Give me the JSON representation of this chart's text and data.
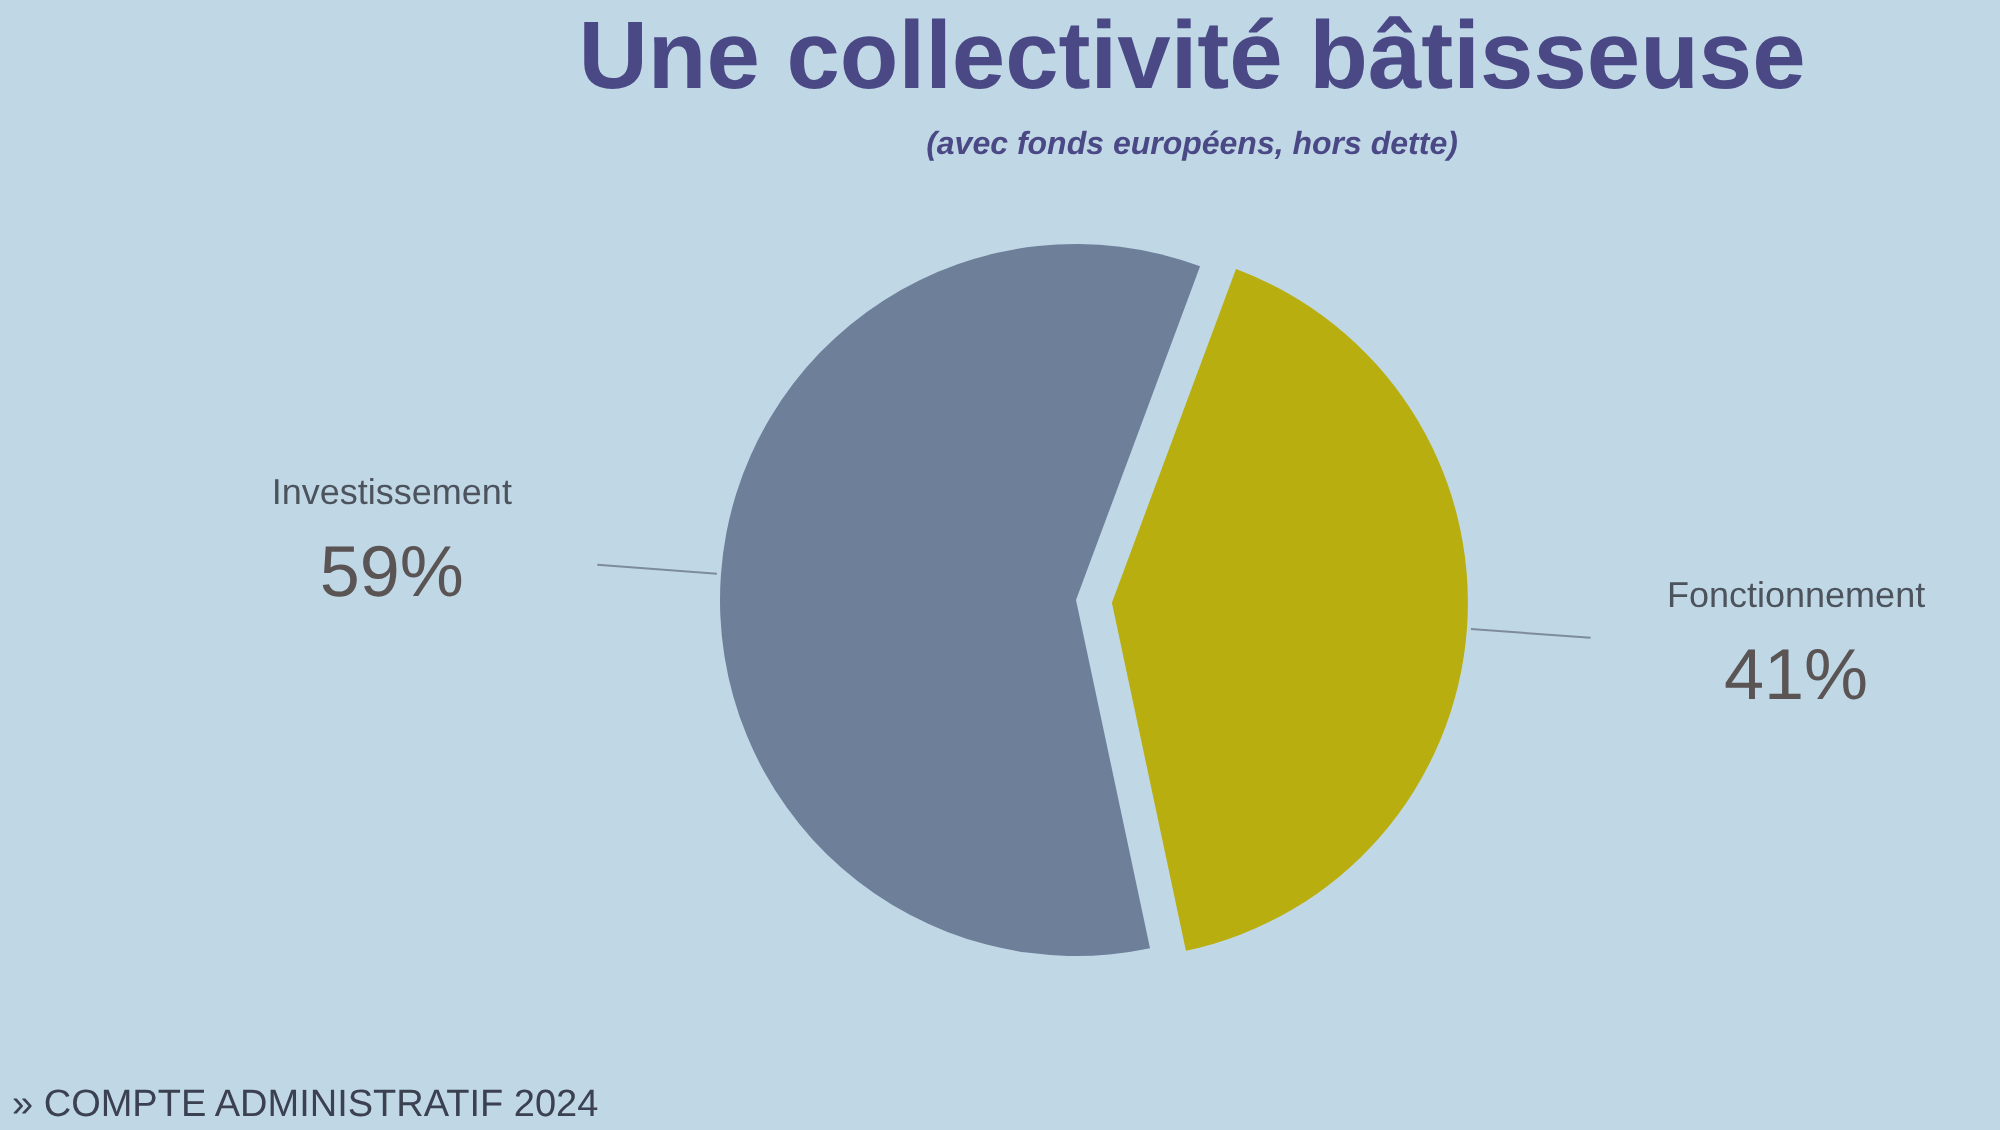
{
  "chart_data": {
    "type": "pie",
    "title": "Une collectivité bâtisseuse",
    "subtitle": "(avec fonds européens, hors dette)",
    "categories": [
      "Investissement",
      "Fonctionnement"
    ],
    "values": [
      59,
      41
    ],
    "colors": [
      "#6e7f9a",
      "#b9ae10"
    ],
    "value_labels": [
      "59%",
      "41%"
    ],
    "annotations": [
      "» COMPTE ADMINISTRATIF 2024"
    ]
  }
}
